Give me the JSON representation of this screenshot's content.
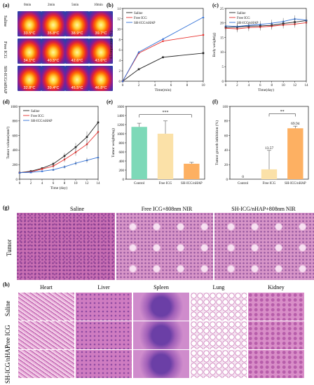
{
  "panel_a": {
    "label": "(a)",
    "time_headers": [
      "0min",
      "2min",
      "5min",
      "10min"
    ],
    "row_labels": [
      "Saline",
      "Free ICG",
      "SH-ICG/nHAP"
    ],
    "temps": [
      [
        "33.5°C",
        "35.8°C",
        "38.9°C",
        "39.7°C"
      ],
      [
        "34.1°C",
        "40.5°C",
        "42.6°C",
        "43.6°C"
      ],
      [
        "32.8°C",
        "39.4°C",
        "45.5°C",
        "46.8°C"
      ]
    ]
  },
  "panel_b": {
    "label": "(b)"
  },
  "panel_c": {
    "label": "(c)"
  },
  "panel_d": {
    "label": "(d)"
  },
  "panel_e": {
    "label": "(e)"
  },
  "panel_f": {
    "label": "(f)"
  },
  "panel_g": {
    "label": "(g)",
    "row_label": "Tumor",
    "col_labels": [
      "Saline",
      "Free ICG+808nm NIR",
      "SH-ICG/nHAP+808nm NIR"
    ]
  },
  "panel_h": {
    "label": "(h)",
    "col_labels": [
      "Heart",
      "Liver",
      "Spleen",
      "Lung",
      "Kidney"
    ],
    "row_labels": [
      "Saline",
      "Free ICG",
      "SH-ICG/nHAP"
    ]
  },
  "colors": {
    "saline": "#222222",
    "free_icg": "#e8322f",
    "sh": "#2f6fd6",
    "bar_saline": "#7dd9b8",
    "bar_free": "#fbe1a8",
    "bar_sh": "#fdb062",
    "he_pink": "#d77fc0"
  },
  "chart_data": [
    {
      "id": "b",
      "type": "line",
      "xlabel": "Time(min)",
      "ylabel": "ΔTemperature(°C)",
      "x": [
        0,
        2,
        5,
        10
      ],
      "xlim": [
        0,
        10
      ],
      "ylim": [
        0,
        14
      ],
      "xticks": [
        0,
        2,
        4,
        6,
        8,
        10
      ],
      "yticks": [
        0,
        2,
        4,
        6,
        8,
        10,
        12,
        14
      ],
      "series": [
        {
          "name": "Saline",
          "values": [
            0,
            2.3,
            4.6,
            5.4
          ]
        },
        {
          "name": "Free ICG",
          "values": [
            0,
            5.4,
            7.7,
            8.9
          ]
        },
        {
          "name": "SH-ICG/nHAP",
          "values": [
            0,
            5.6,
            8.1,
            12.3
          ]
        }
      ]
    },
    {
      "id": "c",
      "type": "line",
      "xlabel": "Time(day)",
      "ylabel": "Body weight(g)",
      "x": [
        0,
        2,
        4,
        6,
        8,
        10,
        12,
        14
      ],
      "xlim": [
        0,
        14
      ],
      "ylim": [
        0,
        25
      ],
      "xticks": [
        0,
        2,
        4,
        6,
        8,
        10,
        12,
        14
      ],
      "yticks": [
        0,
        5,
        10,
        15,
        20,
        25
      ],
      "series": [
        {
          "name": "Saline",
          "values": [
            18.5,
            18.6,
            18.9,
            19.0,
            19.2,
            19.8,
            20.3,
            20.8
          ]
        },
        {
          "name": "Free ICG",
          "values": [
            18.2,
            18.0,
            18.4,
            18.6,
            18.9,
            19.3,
            19.6,
            20.1
          ]
        },
        {
          "name": "SH-ICG/nHAP",
          "values": [
            19.0,
            18.8,
            19.2,
            19.5,
            19.9,
            20.5,
            21.4,
            21.0
          ]
        }
      ]
    },
    {
      "id": "d",
      "type": "line",
      "xlabel": "Time (day)",
      "ylabel": "Tumor volume(mm³)",
      "x": [
        0,
        2,
        4,
        6,
        8,
        10,
        12,
        14
      ],
      "xlim": [
        0,
        14
      ],
      "ylim": [
        0,
        1000
      ],
      "xticks": [
        0,
        2,
        4,
        6,
        8,
        10,
        12,
        14
      ],
      "yticks": [
        0,
        200,
        400,
        600,
        800,
        1000
      ],
      "series": [
        {
          "name": "Saline",
          "values": [
            90,
            110,
            150,
            210,
            320,
            440,
            580,
            780
          ]
        },
        {
          "name": "Free ICG",
          "values": [
            90,
            100,
            140,
            180,
            270,
            370,
            480,
            650
          ]
        },
        {
          "name": "SH-ICG/nHAP",
          "values": [
            90,
            95,
            110,
            130,
            170,
            220,
            260,
            300
          ]
        }
      ]
    },
    {
      "id": "e",
      "type": "bar",
      "ylabel": "Tumor weight(mg)",
      "categories": [
        "Control",
        "Free ICG",
        "SH-ICG/nHAP"
      ],
      "values": [
        1150,
        1000,
        340
      ],
      "errors": [
        80,
        280,
        30
      ],
      "ylim": [
        0,
        1600
      ],
      "yticks": [
        0,
        200,
        400,
        600,
        800,
        1000,
        1200,
        1400,
        1600
      ],
      "annotation": "***"
    },
    {
      "id": "f",
      "type": "bar",
      "ylabel": "Tumor growth inhibition (%)",
      "categories": [
        "Control",
        "Free ICG",
        "SH-ICG/nHAP"
      ],
      "values": [
        0,
        13.57,
        69.94
      ],
      "errors": [
        0,
        26,
        3
      ],
      "data_labels": [
        "0",
        "13.57",
        "69.94"
      ],
      "ylim": [
        0,
        100
      ],
      "yticks": [
        0,
        20,
        40,
        60,
        80,
        100
      ],
      "annotation": "**"
    }
  ]
}
